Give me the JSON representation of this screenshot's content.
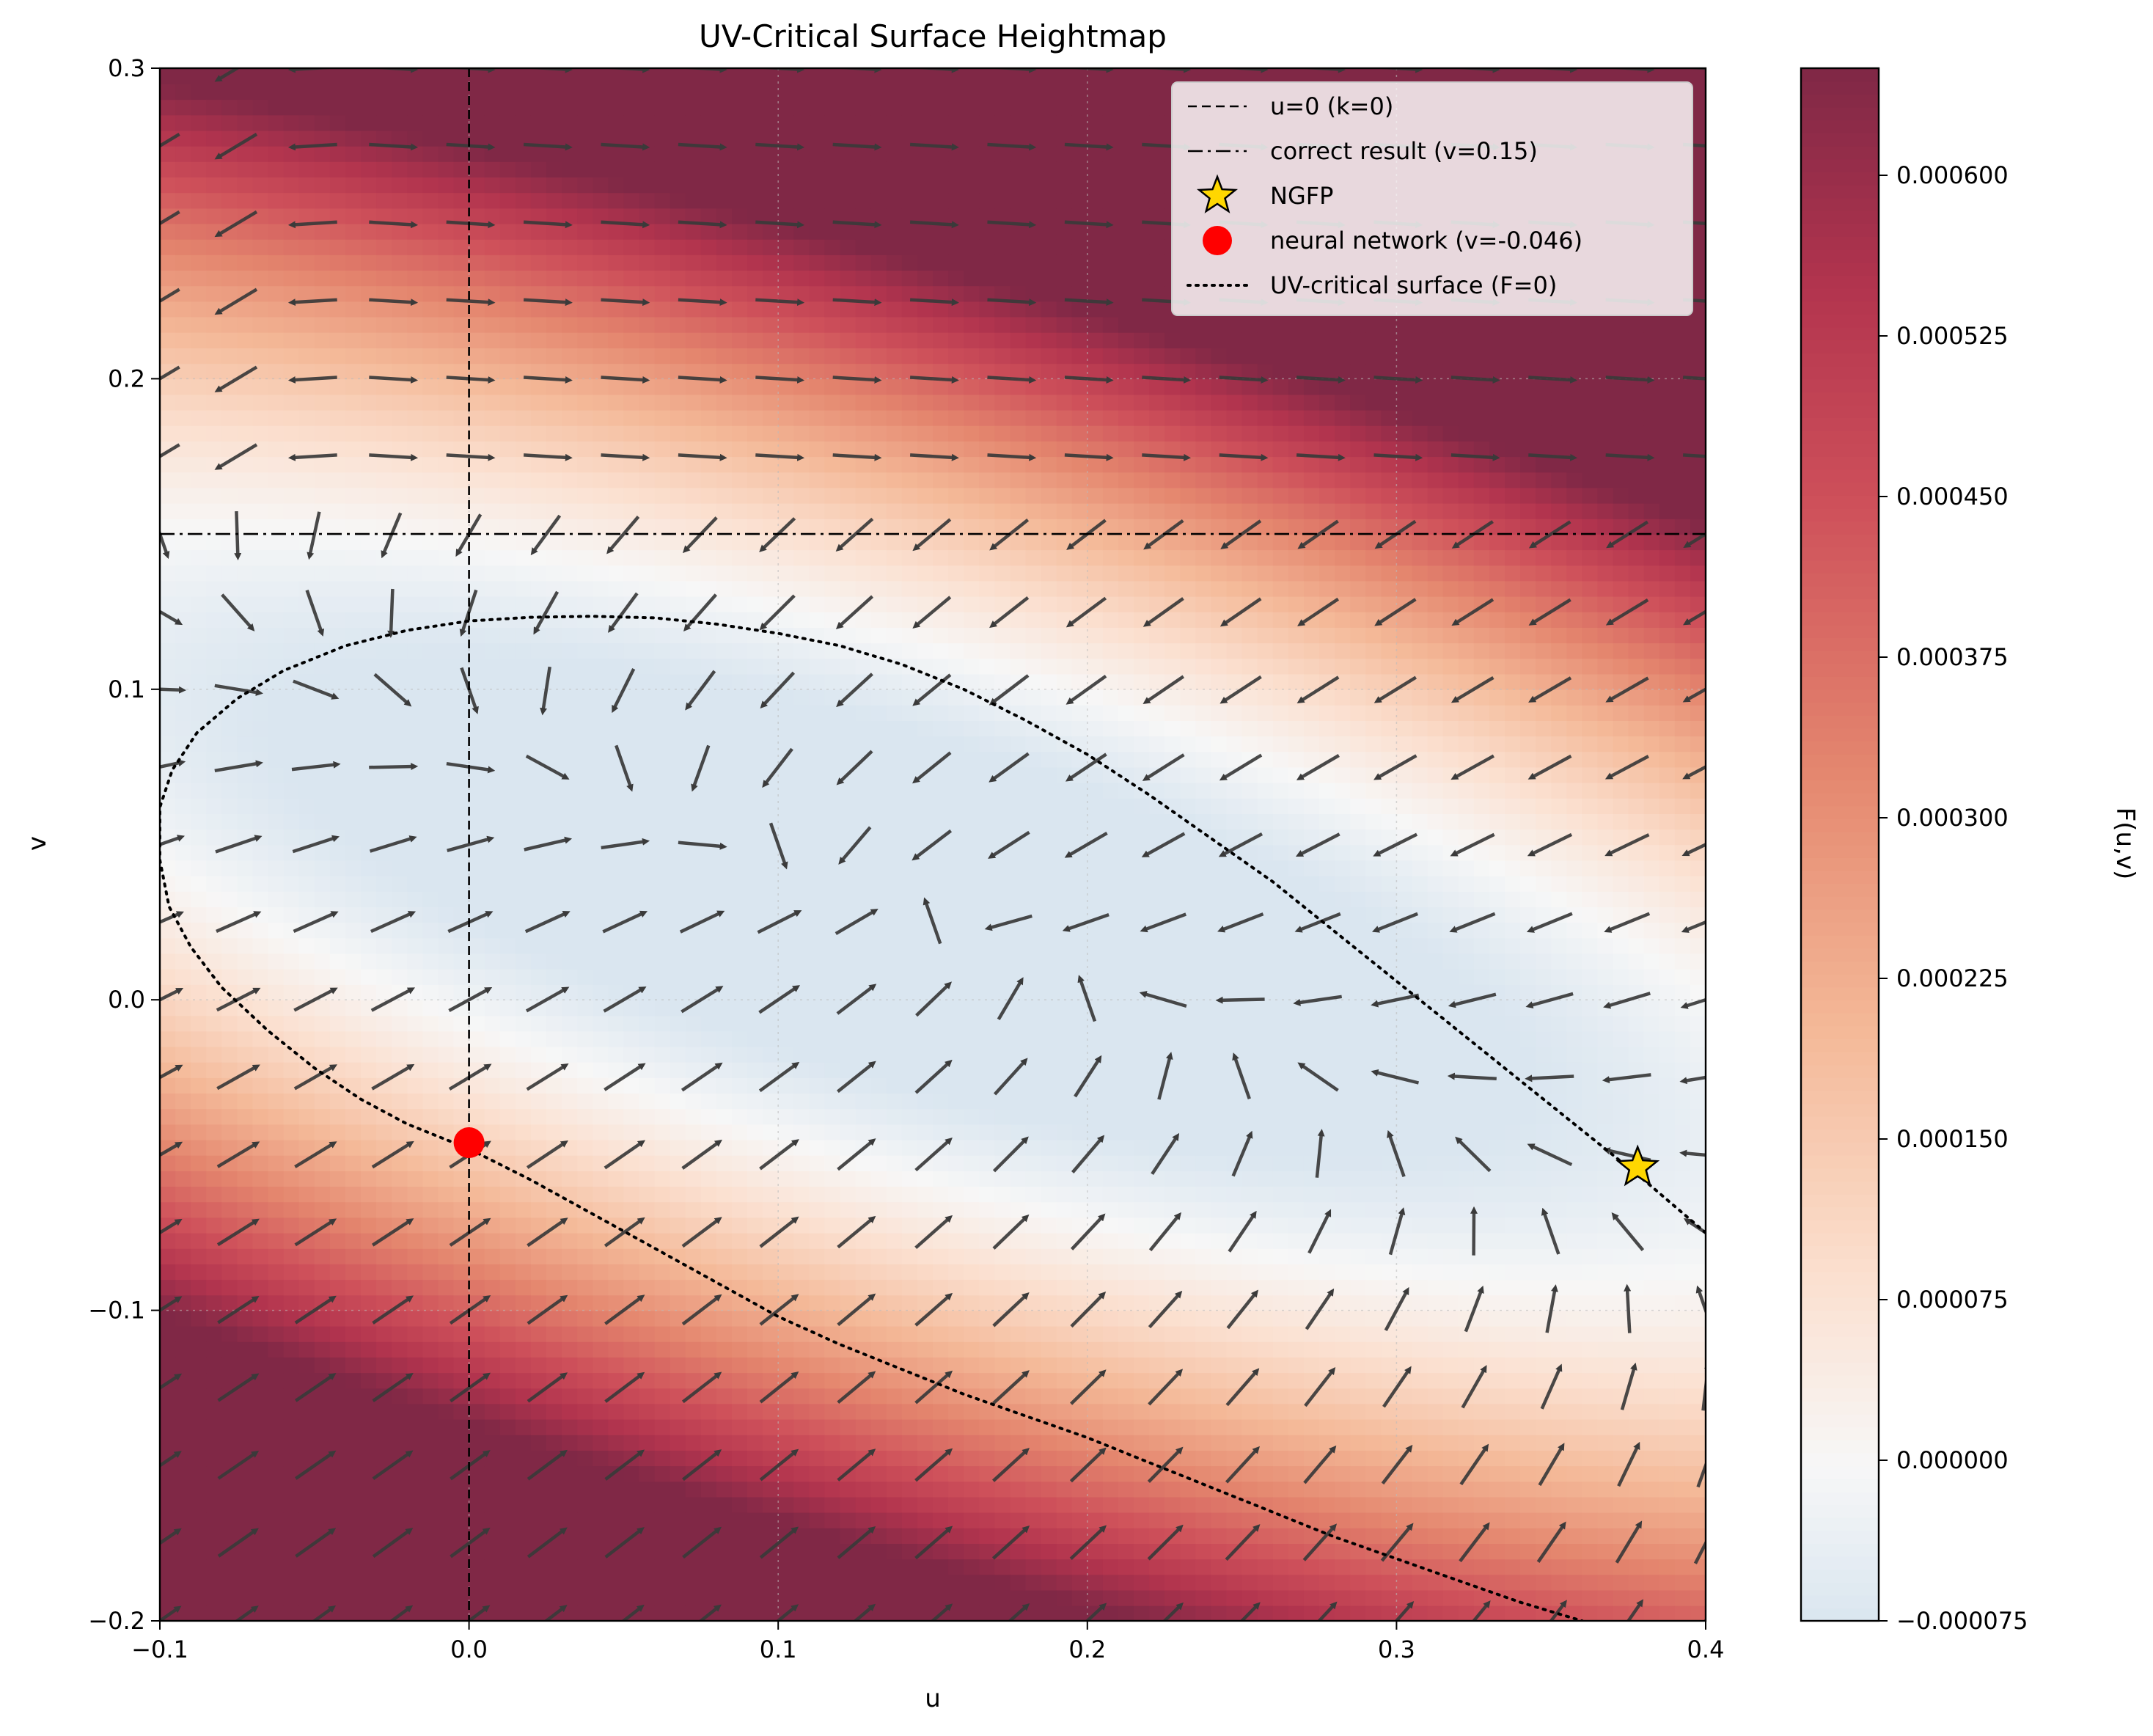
{
  "chart_data": {
    "type": "heatmap",
    "title": "UV-Critical Surface Heightmap",
    "xlabel": "u",
    "ylabel": "v",
    "xlim": [
      -0.1,
      0.4
    ],
    "ylim": [
      -0.2,
      0.3
    ],
    "x_ticks": [
      "−0.1",
      "0.0",
      "0.1",
      "0.2",
      "0.3",
      "0.4"
    ],
    "y_ticks": [
      "−0.2",
      "−0.1",
      "0.0",
      "0.1",
      "0.2",
      "0.3"
    ],
    "grid": true,
    "colorbar": {
      "label": "F(u,v)",
      "min": -7.5e-05,
      "max": 0.00065,
      "ticks": [
        "−0.000075",
        "0.000000",
        "0.000075",
        "0.000150",
        "0.000225",
        "0.000300",
        "0.000375",
        "0.000450",
        "0.000525",
        "0.000600"
      ],
      "colormap": "RdBu_r"
    },
    "reference_lines": [
      {
        "kind": "vertical",
        "value": 0.0,
        "style": "dashed"
      },
      {
        "kind": "horizontal",
        "value": 0.15,
        "style": "dashdot"
      }
    ],
    "points": [
      {
        "name": "NGFP",
        "u": 0.378,
        "v": -0.054,
        "marker": "star",
        "color": "#ffd700"
      },
      {
        "name": "neural network",
        "u": 0.0,
        "v": -0.046,
        "marker": "circle",
        "color": "#ff0000"
      }
    ],
    "critical_surface": {
      "u": [
        0.4,
        0.38,
        0.36,
        0.34,
        0.32,
        0.3,
        0.28,
        0.26,
        0.24,
        0.22,
        0.2,
        0.18,
        0.16,
        0.14,
        0.12,
        0.1,
        0.08,
        0.06,
        0.04,
        0.02,
        0.0,
        -0.02,
        -0.04,
        -0.06,
        -0.075,
        -0.088,
        -0.096,
        -0.1,
        -0.1,
        -0.097,
        -0.09,
        -0.08,
        -0.065,
        -0.05,
        -0.035,
        -0.02,
        0.0,
        0.02,
        0.04,
        0.06,
        0.08,
        0.1,
        0.12,
        0.14,
        0.16,
        0.18,
        0.2,
        0.22,
        0.24,
        0.26,
        0.28,
        0.3,
        0.32,
        0.34,
        0.36
      ],
      "v": [
        -0.075,
        -0.058,
        -0.042,
        -0.026,
        -0.01,
        0.006,
        0.022,
        0.038,
        0.052,
        0.066,
        0.079,
        0.09,
        0.1,
        0.108,
        0.114,
        0.118,
        0.121,
        0.123,
        0.1235,
        0.1232,
        0.122,
        0.119,
        0.114,
        0.106,
        0.097,
        0.086,
        0.074,
        0.062,
        0.045,
        0.03,
        0.017,
        0.004,
        -0.01,
        -0.022,
        -0.032,
        -0.04,
        -0.048,
        -0.058,
        -0.069,
        -0.08,
        -0.091,
        -0.102,
        -0.111,
        -0.119,
        -0.127,
        -0.134,
        -0.141,
        -0.149,
        -0.157,
        -0.165,
        -0.173,
        -0.18,
        -0.187,
        -0.194,
        -0.2
      ]
    },
    "legend": {
      "placement": "upper right",
      "entries": [
        {
          "label": "u=0 (k=0)",
          "style": "dashed"
        },
        {
          "label": "correct result (v=0.15)",
          "style": "dashdot"
        },
        {
          "label": "NGFP",
          "style": "star"
        },
        {
          "label": "neural network (v=-0.046)",
          "style": "circle"
        },
        {
          "label": "UV-critical surface (F=0)",
          "style": "dotted"
        }
      ]
    },
    "vector_field": {
      "u_grid": [
        -0.1,
        0.4,
        21
      ],
      "v_grid": [
        -0.2,
        0.3,
        21
      ]
    }
  }
}
